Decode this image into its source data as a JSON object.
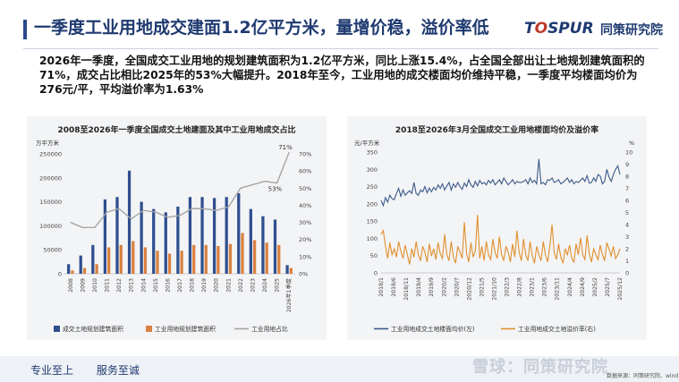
{
  "header": {
    "title": "一季度工业用地成交建面1.2亿平方米，量增价稳，溢价率低",
    "logo_en_a": "T",
    "logo_en_o": "O",
    "logo_en_b": "SPUR",
    "logo_cn": "同策研究院"
  },
  "summary": "2026年一季度，全国成交工业用地的规划建筑面积为1.2亿平方米，同比上涨15.4%，占全国全部出让土地规划建筑面积的71%，成交占比相比2025年的53%大幅提升。2018年至今，工业用地的成交楼面均价维持平稳，一季度平均楼面均价为276元/平，平均溢价率为1.63%",
  "footer": {
    "slogan_1": "专业至上",
    "slogan_2": "服务至诚",
    "watermark": "雪球：同策研究院",
    "source": "数据来源：同策研究院、wind"
  },
  "colors": {
    "title": "#1f3a70",
    "bar_total": "#2f4f8f",
    "bar_industrial": "#d9813f",
    "line_share": "#a6a6a6",
    "price_line": "#3c5a8a",
    "premium_line": "#e0902e"
  },
  "chart_data": [
    {
      "type": "bar",
      "title": "2008至2026年一季度全国成交土地建面及其中工业用地成交占比",
      "ylabel_left": "万平方米",
      "categories": [
        "2008",
        "2009",
        "2010",
        "2011",
        "2012",
        "2013",
        "2014",
        "2015",
        "2016",
        "2017",
        "2018",
        "2019",
        "2020",
        "2021",
        "2022",
        "2023",
        "2024",
        "2025",
        "2026年1季度"
      ],
      "ylim_left": [
        0,
        250000
      ],
      "yticks_left": [
        "0",
        "50000",
        "100000",
        "150000",
        "200000",
        "250000"
      ],
      "ylim_right": [
        0,
        70
      ],
      "yticks_right": [
        "0%",
        "10%",
        "20%",
        "30%",
        "40%",
        "50%",
        "60%",
        "70%"
      ],
      "series": [
        {
          "name": "成交土地规划建筑面积",
          "axis": "left",
          "values": [
            20000,
            38000,
            60000,
            155000,
            160000,
            215000,
            150000,
            135000,
            128000,
            140000,
            160000,
            160000,
            158000,
            160000,
            168000,
            135000,
            120000,
            113000,
            18000
          ]
        },
        {
          "name": "工业用地规划建筑面积",
          "axis": "left",
          "values": [
            7000,
            12000,
            20000,
            55000,
            60000,
            68000,
            55000,
            48000,
            42000,
            48000,
            60000,
            60000,
            58000,
            62000,
            85000,
            70000,
            65000,
            60000,
            12000
          ]
        },
        {
          "name": "工业用地占比",
          "axis": "right",
          "values": [
            30,
            27,
            27,
            36,
            38,
            32,
            37,
            36,
            33,
            34,
            38,
            38,
            37,
            39,
            50,
            52,
            54,
            53,
            71
          ]
        }
      ],
      "annotations": [
        "71%",
        "53%"
      ],
      "legend_position": "bottom"
    },
    {
      "type": "line",
      "title": "2018至2026年3月全国成交工业用地楼面均价及溢价率",
      "ylabel_left": "元/平方米",
      "ylabel_right": "%",
      "x_ticks": [
        "2018/1",
        "2018/6",
        "2018/11",
        "2019/4",
        "2019/9",
        "2020/2",
        "2020/7",
        "2020/12",
        "2021/5",
        "2021/10",
        "2022/3",
        "2022/8",
        "2023/1",
        "2023/6",
        "2023/11",
        "2024/4",
        "2024/9",
        "2025/2",
        "2025/7",
        "2025/12"
      ],
      "ylim_left": [
        0,
        350
      ],
      "yticks_left": [
        "0",
        "50",
        "100",
        "150",
        "200",
        "250",
        "300",
        "350"
      ],
      "ylim_right": [
        0,
        10
      ],
      "yticks_right": [
        "0",
        "1",
        "2",
        "3",
        "4",
        "5",
        "6",
        "7",
        "8",
        "9",
        "10"
      ],
      "series": [
        {
          "name": "工业用地成交土地楼面均价(左)",
          "axis": "left",
          "values": [
            210,
            195,
            218,
            205,
            225,
            215,
            212,
            230,
            245,
            222,
            240,
            225,
            232,
            238,
            230,
            262,
            230,
            225,
            240,
            235,
            250,
            232,
            246,
            235,
            248,
            240,
            255,
            245,
            258,
            240,
            252,
            262,
            240,
            258,
            248,
            262,
            250,
            242,
            260,
            250,
            270,
            255,
            248,
            265,
            252,
            268,
            258,
            262,
            255,
            268,
            260,
            270,
            255,
            262,
            270,
            258,
            275,
            265,
            255,
            262,
            270,
            258,
            265,
            262,
            262,
            265,
            270,
            258,
            275,
            262,
            268,
            258,
            330,
            258,
            262,
            255,
            270,
            268,
            275,
            262,
            265,
            270,
            258,
            262,
            268,
            275,
            262,
            270,
            258,
            265,
            262,
            268,
            275,
            265,
            282,
            260,
            262,
            275,
            265,
            285,
            280,
            258,
            265,
            300,
            278,
            265,
            285,
            300,
            310,
            285
          ]
        },
        {
          "name": "工业用地成交土地溢价率(右)",
          "axis": "right",
          "values": [
            3.2,
            3.5,
            2.2,
            1.2,
            2.5,
            1.5,
            2.0,
            1.3,
            2.6,
            1.8,
            1.2,
            2.3,
            1.5,
            0.7,
            2.0,
            1.3,
            2.6,
            1.5,
            1.0,
            2.2,
            1.7,
            0.9,
            2.4,
            1.4,
            2.0,
            1.1,
            2.5,
            1.6,
            1.2,
            3.2,
            1.5,
            1.0,
            2.6,
            1.3,
            0.8,
            2.2,
            1.7,
            1.2,
            4.2,
            1.6,
            0.9,
            2.5,
            1.3,
            1.8,
            4.8,
            1.2,
            2.2,
            1.0,
            2.6,
            1.5,
            1.1,
            2.8,
            1.7,
            1.2,
            3.0,
            1.5,
            1.0,
            2.2,
            1.7,
            0.9,
            2.4,
            1.3,
            3.5,
            1.7,
            1.0,
            2.8,
            1.5,
            1.0,
            2.6,
            1.4,
            0.8,
            2.2,
            1.5,
            1.0,
            2.6,
            1.5,
            0.9,
            2.2,
            4.0,
            1.7,
            1.1,
            2.4,
            1.3,
            0.8,
            2.0,
            1.5,
            2.3,
            1.2,
            0.9,
            2.4,
            1.5,
            2.9,
            1.5,
            1.1,
            3.1,
            1.6,
            0.9,
            2.0,
            1.5,
            1.1,
            2.3,
            1.5,
            1.0,
            2.5,
            2.0,
            1.4,
            2.2,
            1.2,
            1.5,
            2.0
          ]
        }
      ],
      "legend_position": "bottom"
    }
  ]
}
